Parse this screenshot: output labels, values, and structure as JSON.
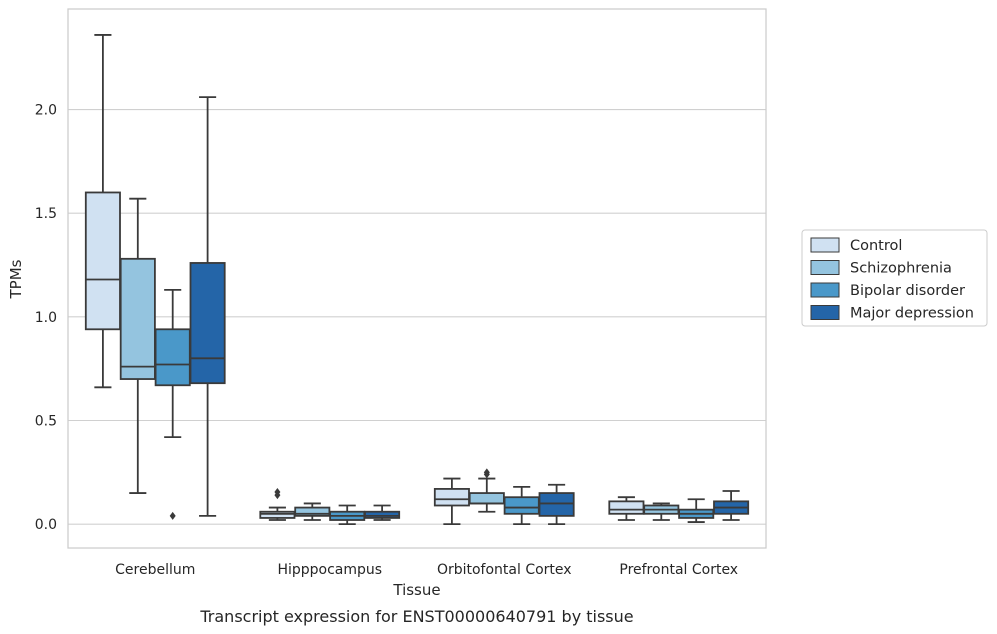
{
  "chart_data": {
    "type": "box",
    "caption": "Transcript expression for ENST00000640791 by tissue",
    "xlabel": "Tissue",
    "ylabel": "TPMs",
    "ylim": [
      -0.115,
      2.485
    ],
    "yticks": [
      0.0,
      0.5,
      1.0,
      1.5,
      2.0
    ],
    "ytick_labels": [
      "0.0",
      "0.5",
      "1.0",
      "1.5",
      "2.0"
    ],
    "grid": "horizontal",
    "legend_position": "right",
    "categories": [
      "Cerebellum",
      "Hipppocampus",
      "Orbitofontal Cortex",
      "Prefrontal Cortex"
    ],
    "series": [
      {
        "name": "Control",
        "color": "#d0e1f2",
        "boxes": [
          {
            "whislo": 0.66,
            "q1": 0.94,
            "med": 1.18,
            "q3": 1.6,
            "whishi": 2.36,
            "fliers": []
          },
          {
            "whislo": 0.02,
            "q1": 0.03,
            "med": 0.05,
            "q3": 0.06,
            "whishi": 0.08,
            "fliers": [
              0.14,
              0.155
            ]
          },
          {
            "whislo": 0.0,
            "q1": 0.09,
            "med": 0.12,
            "q3": 0.17,
            "whishi": 0.22,
            "fliers": []
          },
          {
            "whislo": 0.02,
            "q1": 0.05,
            "med": 0.07,
            "q3": 0.11,
            "whishi": 0.13,
            "fliers": []
          }
        ]
      },
      {
        "name": "Schizophrenia",
        "color": "#94c4df",
        "boxes": [
          {
            "whislo": 0.15,
            "q1": 0.7,
            "med": 0.76,
            "q3": 1.28,
            "whishi": 1.57,
            "fliers": []
          },
          {
            "whislo": 0.02,
            "q1": 0.04,
            "med": 0.05,
            "q3": 0.08,
            "whishi": 0.1,
            "fliers": []
          },
          {
            "whislo": 0.06,
            "q1": 0.1,
            "med": 0.1,
            "q3": 0.15,
            "whishi": 0.22,
            "fliers": [
              0.24,
              0.25
            ]
          },
          {
            "whislo": 0.02,
            "q1": 0.05,
            "med": 0.07,
            "q3": 0.09,
            "whishi": 0.1,
            "fliers": []
          }
        ]
      },
      {
        "name": "Bipolar disorder",
        "color": "#4a98c9",
        "boxes": [
          {
            "whislo": 0.42,
            "q1": 0.67,
            "med": 0.77,
            "q3": 0.94,
            "whishi": 1.13,
            "fliers": [
              0.04
            ]
          },
          {
            "whislo": 0.0,
            "q1": 0.02,
            "med": 0.04,
            "q3": 0.06,
            "whishi": 0.09,
            "fliers": []
          },
          {
            "whislo": 0.0,
            "q1": 0.05,
            "med": 0.08,
            "q3": 0.13,
            "whishi": 0.18,
            "fliers": []
          },
          {
            "whislo": 0.01,
            "q1": 0.03,
            "med": 0.05,
            "q3": 0.07,
            "whishi": 0.12,
            "fliers": []
          }
        ]
      },
      {
        "name": "Major depression",
        "color": "#2465a8",
        "boxes": [
          {
            "whislo": 0.04,
            "q1": 0.68,
            "med": 0.8,
            "q3": 1.26,
            "whishi": 2.06,
            "fliers": []
          },
          {
            "whislo": 0.02,
            "q1": 0.03,
            "med": 0.04,
            "q3": 0.06,
            "whishi": 0.09,
            "fliers": []
          },
          {
            "whislo": 0.0,
            "q1": 0.04,
            "med": 0.1,
            "q3": 0.15,
            "whishi": 0.19,
            "fliers": []
          },
          {
            "whislo": 0.02,
            "q1": 0.05,
            "med": 0.08,
            "q3": 0.11,
            "whishi": 0.16,
            "fliers": []
          }
        ]
      }
    ]
  }
}
